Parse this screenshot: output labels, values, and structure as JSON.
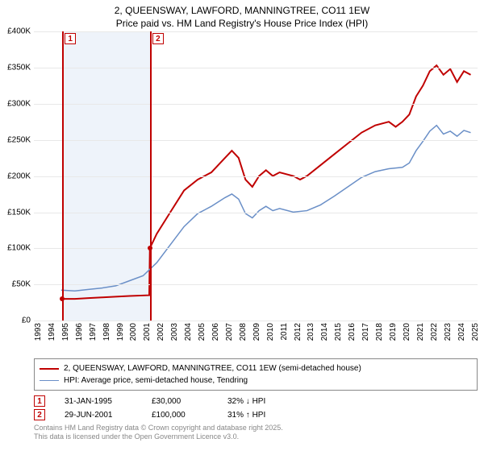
{
  "title_line1": "2, QUEENSWAY, LAWFORD, MANNINGTREE, CO11 1EW",
  "title_line2": "Price paid vs. HM Land Registry's House Price Index (HPI)",
  "chart": {
    "type": "line",
    "background_color": "#ffffff",
    "grid_color": "#e8e8e8",
    "axis_color": "#888888",
    "label_fontsize": 10,
    "x_years": [
      1993,
      1994,
      1995,
      1996,
      1997,
      1998,
      1999,
      2000,
      2001,
      2002,
      2003,
      2004,
      2005,
      2006,
      2007,
      2008,
      2009,
      2010,
      2011,
      2012,
      2013,
      2014,
      2015,
      2016,
      2017,
      2018,
      2019,
      2020,
      2021,
      2022,
      2023,
      2024,
      2025
    ],
    "xlim": [
      1993,
      2025.5
    ],
    "y_ticks": [
      0,
      50000,
      100000,
      150000,
      200000,
      250000,
      300000,
      350000,
      400000
    ],
    "y_tick_labels": [
      "£0",
      "£50K",
      "£100K",
      "£150K",
      "£200K",
      "£250K",
      "£300K",
      "£350K",
      "£400K"
    ],
    "ylim": [
      0,
      400000
    ],
    "shade": {
      "from": 1995.08,
      "to": 2001.5,
      "color": "#eef3fa"
    },
    "markers": [
      {
        "idx": "1",
        "year": 1995.08
      },
      {
        "idx": "2",
        "year": 2001.5
      }
    ],
    "series": [
      {
        "name": "2, QUEENSWAY, LAWFORD, MANNINGTREE, CO11 1EW (semi-detached house)",
        "color": "#c00000",
        "width": 2,
        "dot_color": "#c00000",
        "points": [
          [
            1995.08,
            30000
          ],
          [
            1996,
            30000
          ],
          [
            1997,
            31000
          ],
          [
            1998,
            32000
          ],
          [
            1999,
            33000
          ],
          [
            2000,
            34000
          ],
          [
            2001.45,
            35000
          ],
          [
            2001.5,
            100000
          ],
          [
            2002,
            120000
          ],
          [
            2003,
            150000
          ],
          [
            2004,
            180000
          ],
          [
            2005,
            195000
          ],
          [
            2006,
            205000
          ],
          [
            2007,
            225000
          ],
          [
            2007.5,
            235000
          ],
          [
            2008,
            225000
          ],
          [
            2008.5,
            195000
          ],
          [
            2009,
            185000
          ],
          [
            2009.5,
            200000
          ],
          [
            2010,
            208000
          ],
          [
            2010.5,
            200000
          ],
          [
            2011,
            205000
          ],
          [
            2012,
            200000
          ],
          [
            2012.5,
            195000
          ],
          [
            2013,
            200000
          ],
          [
            2014,
            215000
          ],
          [
            2015,
            230000
          ],
          [
            2016,
            245000
          ],
          [
            2017,
            260000
          ],
          [
            2018,
            270000
          ],
          [
            2019,
            275000
          ],
          [
            2019.5,
            268000
          ],
          [
            2020,
            275000
          ],
          [
            2020.5,
            285000
          ],
          [
            2021,
            310000
          ],
          [
            2021.5,
            325000
          ],
          [
            2022,
            345000
          ],
          [
            2022.5,
            353000
          ],
          [
            2023,
            340000
          ],
          [
            2023.5,
            348000
          ],
          [
            2024,
            330000
          ],
          [
            2024.5,
            345000
          ],
          [
            2025,
            340000
          ]
        ]
      },
      {
        "name": "HPI: Average price, semi-detached house, Tendring",
        "color": "#6a8fc7",
        "width": 1.5,
        "points": [
          [
            1995,
            42000
          ],
          [
            1996,
            41000
          ],
          [
            1997,
            43000
          ],
          [
            1998,
            45000
          ],
          [
            1999,
            48000
          ],
          [
            2000,
            55000
          ],
          [
            2001,
            62000
          ],
          [
            2002,
            80000
          ],
          [
            2003,
            105000
          ],
          [
            2004,
            130000
          ],
          [
            2005,
            148000
          ],
          [
            2006,
            158000
          ],
          [
            2007,
            170000
          ],
          [
            2007.5,
            175000
          ],
          [
            2008,
            168000
          ],
          [
            2008.5,
            148000
          ],
          [
            2009,
            142000
          ],
          [
            2009.5,
            152000
          ],
          [
            2010,
            158000
          ],
          [
            2010.5,
            152000
          ],
          [
            2011,
            155000
          ],
          [
            2012,
            150000
          ],
          [
            2013,
            152000
          ],
          [
            2014,
            160000
          ],
          [
            2015,
            172000
          ],
          [
            2016,
            185000
          ],
          [
            2017,
            198000
          ],
          [
            2018,
            206000
          ],
          [
            2019,
            210000
          ],
          [
            2020,
            212000
          ],
          [
            2020.5,
            218000
          ],
          [
            2021,
            235000
          ],
          [
            2021.5,
            248000
          ],
          [
            2022,
            262000
          ],
          [
            2022.5,
            270000
          ],
          [
            2023,
            258000
          ],
          [
            2023.5,
            262000
          ],
          [
            2024,
            255000
          ],
          [
            2024.5,
            263000
          ],
          [
            2025,
            260000
          ]
        ]
      }
    ]
  },
  "legend": {
    "items": [
      {
        "color": "#c00000",
        "width": 2,
        "label": "2, QUEENSWAY, LAWFORD, MANNINGTREE, CO11 1EW (semi-detached house)"
      },
      {
        "color": "#6a8fc7",
        "width": 1.5,
        "label": "HPI: Average price, semi-detached house, Tendring"
      }
    ]
  },
  "sales": [
    {
      "idx": "1",
      "date": "31-JAN-1995",
      "price": "£30,000",
      "delta": "32% ↓ HPI"
    },
    {
      "idx": "2",
      "date": "29-JUN-2001",
      "price": "£100,000",
      "delta": "31% ↑ HPI"
    }
  ],
  "footer_line1": "Contains HM Land Registry data © Crown copyright and database right 2025.",
  "footer_line2": "This data is licensed under the Open Government Licence v3.0."
}
